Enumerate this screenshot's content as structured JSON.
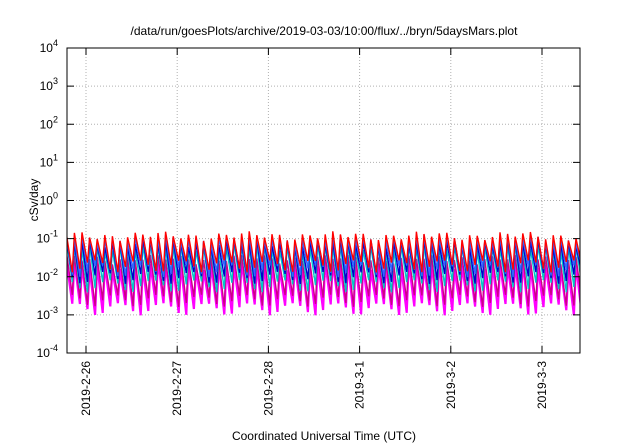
{
  "chart_data": {
    "type": "line",
    "title": "/data/run/goesPlots/archive/2019-03-03/10:00/flux/../bryn/5daysMars.plot",
    "xlabel": "Coordinated Universal Time (UTC)",
    "ylabel": "cSv/day",
    "yscale": "log",
    "ylim": [
      0.0001,
      10000
    ],
    "xlim": [
      "2019-02-25T19:00",
      "2019-03-03T10:00"
    ],
    "grid": true,
    "legend": "none",
    "y_ticks": [
      {
        "value": 0.0001,
        "mantissa": "10",
        "exponent": "-4"
      },
      {
        "value": 0.001,
        "mantissa": "10",
        "exponent": "-3"
      },
      {
        "value": 0.01,
        "mantissa": "10",
        "exponent": "-2"
      },
      {
        "value": 0.1,
        "mantissa": "10",
        "exponent": "-1"
      },
      {
        "value": 1,
        "mantissa": "10",
        "exponent": "0"
      },
      {
        "value": 10,
        "mantissa": "10",
        "exponent": "1"
      },
      {
        "value": 100,
        "mantissa": "10",
        "exponent": "2"
      },
      {
        "value": 1000,
        "mantissa": "10",
        "exponent": "3"
      },
      {
        "value": 10000,
        "mantissa": "10",
        "exponent": "4"
      }
    ],
    "x_ticks": [
      "2019-2-26",
      "2019-2-27",
      "2019-2-28",
      "2019-3-1",
      "2019-3-2",
      "2019-3-3"
    ],
    "sawtooth": {
      "cycles_per_day": 12,
      "series_peak_trough": [
        {
          "color": "#ff00ff",
          "peak": 0.02,
          "trough": 0.0015
        },
        {
          "color": "#cc0088",
          "peak": 0.03,
          "trough": 0.0025
        },
        {
          "color": "#00c8c8",
          "peak": 0.06,
          "trough": 0.006
        },
        {
          "color": "#0000cc",
          "peak": 0.08,
          "trough": 0.01
        },
        {
          "color": "#3366ff",
          "peak": 0.1,
          "trough": 0.015
        },
        {
          "color": "#ff0000",
          "peak": 0.12,
          "trough": 0.02
        }
      ]
    }
  }
}
